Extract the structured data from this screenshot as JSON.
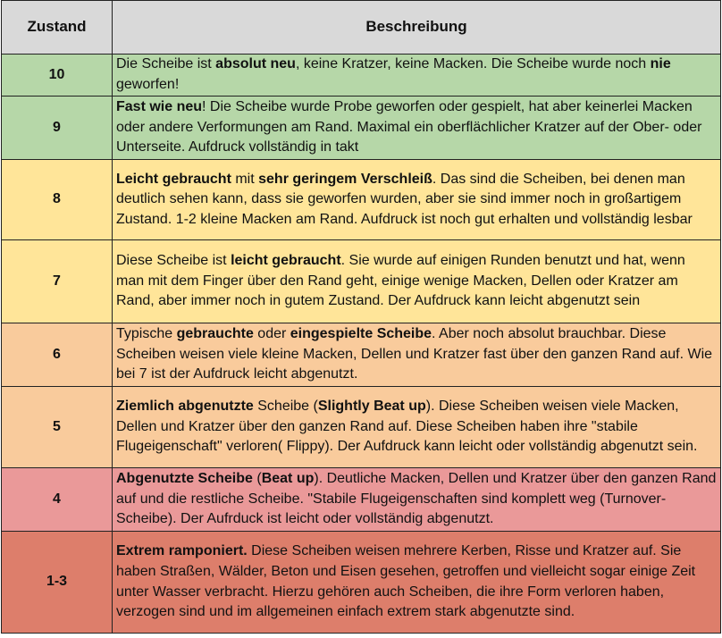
{
  "header": {
    "col_state": "Zustand",
    "col_desc": "Beschreibung"
  },
  "rows": [
    {
      "state": "10",
      "color": "#b6d7a8",
      "segments": [
        {
          "t": "Die Scheibe ist ",
          "b": false
        },
        {
          "t": "absolut neu",
          "b": true
        },
        {
          "t": ", keine Kratzer, keine Macken. Die Scheibe wurde noch ",
          "b": false
        },
        {
          "t": "nie",
          "b": true
        },
        {
          "t": " geworfen!",
          "b": false
        }
      ]
    },
    {
      "state": "9",
      "color": "#b6d7a8",
      "segments": [
        {
          "t": "Fast wie neu",
          "b": true
        },
        {
          "t": "! Die Scheibe wurde Probe geworfen oder gespielt, hat aber keinerlei Macken oder andere Verformungen am Rand. Maximal ein oberflächlicher Kratzer auf der Ober- oder Unterseite. Aufdruck vollständig in takt",
          "b": false
        }
      ]
    },
    {
      "state": "8",
      "color": "#ffe599",
      "segments": [
        {
          "t": "Leicht gebraucht",
          "b": true
        },
        {
          "t": " mit ",
          "b": false
        },
        {
          "t": "sehr geringem Verschleiß",
          "b": true
        },
        {
          "t": ". Das sind die Scheiben, bei denen man deutlich sehen kann, dass sie geworfen wurden, aber sie sind immer noch in großartigem Zustand. 1-2 kleine Macken am Rand. Aufdruck ist noch gut erhalten und vollständig lesbar",
          "b": false
        }
      ]
    },
    {
      "state": "7",
      "color": "#ffe599",
      "segments": [
        {
          "t": "Diese Scheibe ist ",
          "b": false
        },
        {
          "t": "leicht gebraucht",
          "b": true
        },
        {
          "t": ". Sie wurde auf einigen Runden benutzt und hat, wenn man mit dem Finger über den Rand geht, einige wenige Macken, Dellen oder Kratzer am Rand, aber immer noch in gutem Zustand. Der Aufdruck kann leicht abgenutzt sein",
          "b": false
        }
      ]
    },
    {
      "state": "6",
      "color": "#f9cb9c",
      "segments": [
        {
          "t": "Typische ",
          "b": false
        },
        {
          "t": "gebrauchte",
          "b": true
        },
        {
          "t": " oder ",
          "b": false
        },
        {
          "t": "eingespielte Scheibe",
          "b": true
        },
        {
          "t": ". Aber noch absolut brauchbar. Diese Scheiben weisen viele kleine Macken, Dellen und Kratzer fast über den ganzen Rand auf. Wie bei 7 ist der Aufdruck leicht abgenutzt.",
          "b": false
        }
      ]
    },
    {
      "state": "5",
      "color": "#f9cb9c",
      "segments": [
        {
          "t": "Ziemlich abgenutzte",
          "b": true
        },
        {
          "t": " Scheibe (",
          "b": false
        },
        {
          "t": "Slightly Beat up",
          "b": true
        },
        {
          "t": "). Diese Scheiben weisen viele Macken, Dellen und Kratzer über den ganzen Rand auf. Diese Scheiben haben ihre \"stabile Flugeigenschaft\" verloren( Flippy). Der Aufdruck kann leicht oder vollständig abgenutzt sein.",
          "b": false
        }
      ]
    },
    {
      "state": "4",
      "color": "#ea9999",
      "segments": [
        {
          "t": "Abgenutzte Scheibe",
          "b": true
        },
        {
          "t": " (",
          "b": false
        },
        {
          "t": "Beat up",
          "b": true
        },
        {
          "t": "). Deutliche  Macken, Dellen und Kratzer über den ganzen Rand auf und die restliche Scheibe. \"Stabile Flugeigenschaften sind komplett weg (Turnover-Scheibe). Der Aufrduck ist leicht oder vollständig abgenutzt.",
          "b": false
        }
      ]
    },
    {
      "state": "1-3",
      "color": "#dd7e6b",
      "segments": [
        {
          "t": "Extrem ramponiert.",
          "b": true
        },
        {
          "t": " Diese Scheiben weisen mehrere Kerben, Risse und Kratzer auf. Sie haben Straßen, Wälder, Beton und Eisen gesehen, getroffen und vielleicht sogar einige Zeit unter Wasser verbracht. Hierzu gehören auch Scheiben, die ihre Form verloren haben, verzogen sind und im allgemeinen einfach extrem stark abgenutzte sind.",
          "b": false
        }
      ]
    }
  ]
}
